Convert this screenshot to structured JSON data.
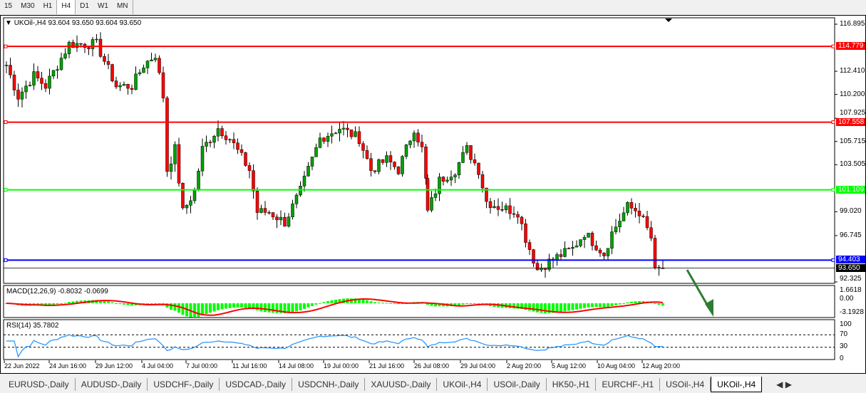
{
  "timeframes": [
    "15",
    "M30",
    "H1",
    "H4",
    "D1",
    "W1",
    "MN"
  ],
  "active_timeframe": "H4",
  "chart": {
    "header": "UKOil-,H4  93.604 93.650 93.604 93.650",
    "price_axis": [
      "116.895",
      "112.410",
      "110.200",
      "107.925",
      "105.715",
      "103.505",
      "99.020",
      "96.745",
      "92.325"
    ],
    "levels": [
      {
        "label": "114.779",
        "price": 114.779,
        "color": "#ff0000"
      },
      {
        "label": "107.558",
        "price": 107.558,
        "color": "#ff0000"
      },
      {
        "label": "101.109",
        "price": 101.109,
        "color": "#00ff00"
      },
      {
        "label": "94.403",
        "price": 94.403,
        "color": "#0000ff"
      }
    ],
    "current_price": {
      "label": "93.650",
      "price": 93.65
    },
    "price_range": [
      92.325,
      116.895
    ],
    "bull_color": "#00a000",
    "bear_color": "#ff0000",
    "price_path": [
      [
        0,
        113
      ],
      [
        3,
        110
      ],
      [
        7,
        112
      ],
      [
        10,
        111
      ],
      [
        16,
        115
      ],
      [
        23,
        115
      ],
      [
        28,
        111
      ],
      [
        32,
        111
      ],
      [
        35,
        113
      ],
      [
        38,
        114
      ],
      [
        40,
        110
      ],
      [
        41,
        103
      ],
      [
        43,
        105
      ],
      [
        45,
        99
      ],
      [
        48,
        101
      ],
      [
        50,
        105
      ],
      [
        54,
        107
      ],
      [
        57,
        106
      ],
      [
        62,
        103
      ],
      [
        64,
        99
      ],
      [
        67,
        99
      ],
      [
        71,
        98
      ],
      [
        75,
        101
      ],
      [
        80,
        106
      ],
      [
        85,
        107
      ],
      [
        90,
        106
      ],
      [
        93,
        103
      ],
      [
        97,
        104
      ],
      [
        100,
        103
      ],
      [
        104,
        107
      ],
      [
        106,
        105
      ],
      [
        108,
        99
      ],
      [
        111,
        102
      ],
      [
        115,
        103
      ],
      [
        118,
        105
      ],
      [
        121,
        103
      ],
      [
        123,
        100
      ],
      [
        126,
        99.5
      ],
      [
        131,
        99
      ],
      [
        133,
        96.5
      ],
      [
        136,
        93.5
      ],
      [
        140,
        94.5
      ],
      [
        145,
        95.5
      ],
      [
        148,
        97
      ],
      [
        153,
        95
      ],
      [
        155,
        97
      ],
      [
        159,
        99.5
      ],
      [
        162,
        99
      ],
      [
        165,
        96.5
      ],
      [
        166,
        93.3
      ],
      [
        168,
        93.65
      ]
    ],
    "time_axis": [
      "22 Jun 2022",
      "24 Jun 16:00",
      "29 Jun 12:00",
      "4 Jul 04:00",
      "7 Jul 00:00",
      "11 Jul 16:00",
      "14 Jul 08:00",
      "19 Jul 00:00",
      "21 Jul 16:00",
      "26 Jul 08:00",
      "29 Jul 04:00",
      "2 Aug 20:00",
      "5 Aug 12:00",
      "10 Aug 04:00",
      "12 Aug 20:00"
    ]
  },
  "macd": {
    "header": "MACD(12,26,9) -0.8032 -0.0699",
    "axis": [
      "1.6618",
      "0.00",
      "-3.1928"
    ],
    "hist_color": "#00ff00",
    "signal_color": "#ff0000"
  },
  "rsi": {
    "header": "RSI(14) 35.7802",
    "axis": [
      "100",
      "70",
      "30",
      "0"
    ],
    "line_color": "#1e90ff",
    "levels": [
      70,
      30
    ]
  },
  "tabs": [
    "EURUSD-,Daily",
    "AUDUSD-,Daily",
    "USDCHF-,Daily",
    "USDCAD-,Daily",
    "USDCNH-,Daily",
    "XAUUSD-,Daily",
    "UKOil-,H4",
    "USOil-,Daily",
    "HK50-,H1",
    "EURCHF-,H1",
    "USOil-,H4",
    "UKOil-,H4"
  ],
  "active_tab": 11,
  "annotation": {
    "color": "#2e7d32"
  }
}
